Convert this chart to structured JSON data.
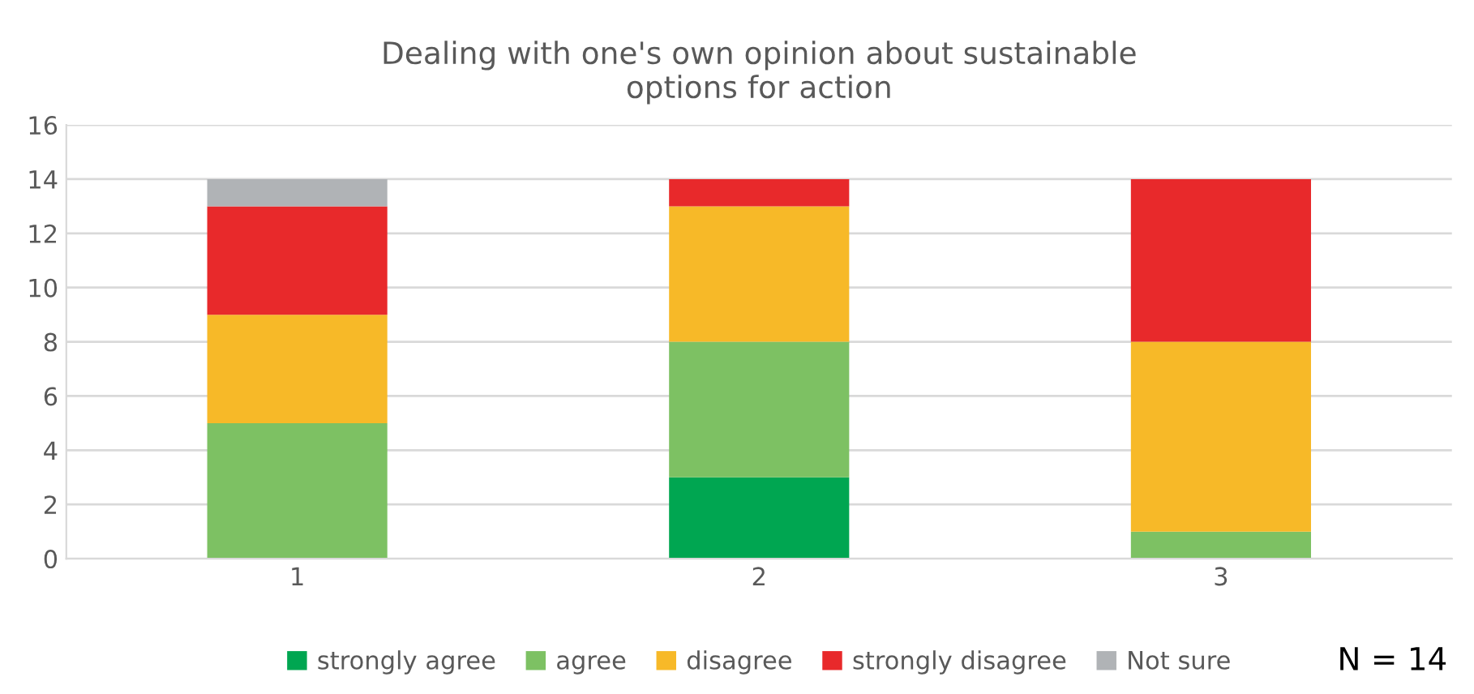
{
  "chart_data": {
    "type": "bar",
    "title": "Dealing with one's own opinion about sustainable\noptions for action",
    "categories": [
      "1",
      "2",
      "3"
    ],
    "stacked": true,
    "series": [
      {
        "name": "strongly agree",
        "color": "#00a651",
        "values": [
          0,
          3,
          0
        ]
      },
      {
        "name": "agree",
        "color": "#7dc163",
        "values": [
          5,
          5,
          1
        ]
      },
      {
        "name": "disagree",
        "color": "#f7b928",
        "values": [
          4,
          5,
          7
        ]
      },
      {
        "name": "strongly disagree",
        "color": "#e8292b",
        "values": [
          4,
          1,
          6
        ]
      },
      {
        "name": "Not sure",
        "color": "#b0b3b6",
        "values": [
          1,
          0,
          0
        ]
      }
    ],
    "ylim": [
      0,
      16
    ],
    "yticks": [
      0,
      2,
      4,
      6,
      8,
      10,
      12,
      14,
      16
    ],
    "grid": "y",
    "legend": "bottom",
    "annotations": [
      "N = 14"
    ]
  }
}
